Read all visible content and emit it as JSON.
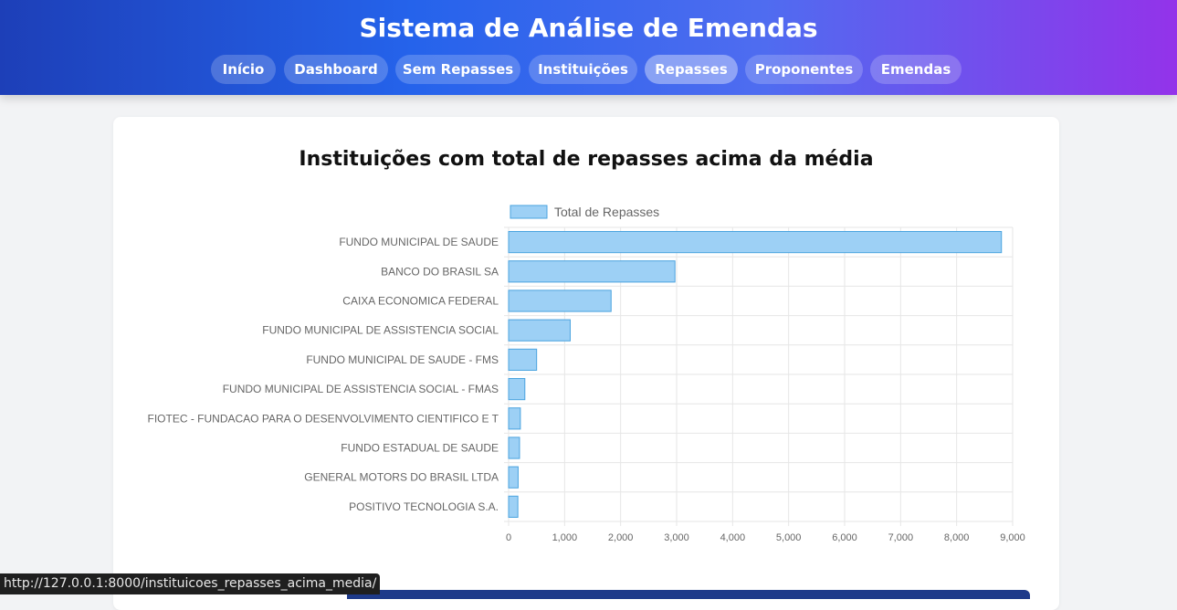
{
  "app": {
    "title": "Sistema de Análise de Emendas"
  },
  "nav": {
    "items": [
      {
        "label": "Início",
        "active": false
      },
      {
        "label": "Dashboard",
        "active": false
      },
      {
        "label": "Sem Repasses",
        "active": false
      },
      {
        "label": "Instituições",
        "active": false
      },
      {
        "label": "Repasses",
        "active": true
      },
      {
        "label": "Proponentes",
        "active": false
      },
      {
        "label": "Emendas",
        "active": false
      }
    ]
  },
  "main": {
    "title": "Instituições com total de repasses acima da média"
  },
  "status_bar": {
    "url": "http://127.0.0.1:8000/instituicoes_repasses_acima_media/"
  },
  "chart_data": {
    "type": "bar",
    "orientation": "horizontal",
    "title": "Instituições com total de repasses acima da média",
    "categories": [
      "FUNDO MUNICIPAL DE SAUDE",
      "BANCO DO BRASIL SA",
      "CAIXA ECONOMICA FEDERAL",
      "FUNDO MUNICIPAL DE ASSISTENCIA SOCIAL",
      "FUNDO MUNICIPAL DE SAUDE - FMS",
      "FUNDO MUNICIPAL DE ASSISTENCIA SOCIAL - FMAS",
      "FIOTEC - FUNDACAO PARA O DESENVOLVIMENTO CIENTIFICO E T",
      "FUNDO ESTADUAL DE SAUDE",
      "GENERAL MOTORS DO BRASIL LTDA",
      "POSITIVO TECNOLOGIA S.A."
    ],
    "series": [
      {
        "name": "Total de Repasses",
        "values": [
          8800,
          2970,
          1830,
          1100,
          500,
          290,
          210,
          195,
          170,
          165
        ]
      }
    ],
    "xlim": [
      0,
      9000
    ],
    "xticks": [
      "0",
      "1,000",
      "2,000",
      "3,000",
      "4,000",
      "5,000",
      "6,000",
      "7,000",
      "8,000",
      "9,000"
    ],
    "legend_position": "top",
    "grid": true,
    "colors": {
      "bar_fill": "#9dd0f5",
      "bar_stroke": "#4aa3df",
      "grid": "#e6e6e6",
      "text": "#666666"
    }
  }
}
